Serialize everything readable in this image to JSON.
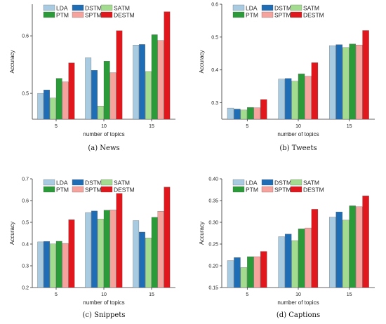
{
  "legend_colors": {
    "LDA": "#a8cbe2",
    "DSTM": "#1f6db5",
    "SATM": "#a4dc8f",
    "PTM": "#2b9a39",
    "SPTM": "#f6a29d",
    "DESTM": "#e0171c"
  },
  "chart_data": [
    {
      "type": "bar",
      "caption": "(a) News",
      "xlabel": "number of topics",
      "ylabel": "Accuracy",
      "categories": [
        "5",
        "10",
        "15"
      ],
      "ylim": [
        0.455,
        0.655
      ],
      "yticks": [
        0.5,
        0.6
      ],
      "ytick_labels": [
        "0.5",
        "0.6"
      ],
      "legend": "top-left",
      "series": [
        {
          "name": "LDA",
          "values": [
            0.5,
            0.562,
            0.584
          ]
        },
        {
          "name": "DSTM",
          "values": [
            0.506,
            0.54,
            0.585
          ]
        },
        {
          "name": "SATM",
          "values": [
            0.492,
            0.478,
            0.538
          ]
        },
        {
          "name": "PTM",
          "values": [
            0.526,
            0.556,
            0.602
          ]
        },
        {
          "name": "SPTM",
          "values": [
            0.52,
            0.536,
            0.592
          ]
        },
        {
          "name": "DESTM",
          "values": [
            0.553,
            0.609,
            0.642
          ]
        }
      ]
    },
    {
      "type": "bar",
      "caption": "(b) Tweets",
      "xlabel": "number of topics",
      "ylabel": "Accuracy",
      "categories": [
        "5",
        "10",
        "15"
      ],
      "ylim": [
        0.25,
        0.6
      ],
      "yticks": [
        0.3,
        0.4,
        0.5,
        0.6
      ],
      "ytick_labels": [
        "0.3",
        "0.4",
        "0.5",
        "0.6"
      ],
      "legend": "top-left",
      "series": [
        {
          "name": "LDA",
          "values": [
            0.284,
            0.372,
            0.474
          ]
        },
        {
          "name": "DSTM",
          "values": [
            0.281,
            0.374,
            0.477
          ]
        },
        {
          "name": "SATM",
          "values": [
            0.278,
            0.366,
            0.468
          ]
        },
        {
          "name": "PTM",
          "values": [
            0.286,
            0.388,
            0.479
          ]
        },
        {
          "name": "SPTM",
          "values": [
            0.285,
            0.381,
            0.476
          ]
        },
        {
          "name": "DESTM",
          "values": [
            0.31,
            0.422,
            0.52
          ]
        }
      ]
    },
    {
      "type": "bar",
      "caption": "(c) Snippets",
      "xlabel": "number of topics",
      "ylabel": "Accuracy",
      "categories": [
        "5",
        "10",
        "15"
      ],
      "ylim": [
        0.2,
        0.7
      ],
      "yticks": [
        0.2,
        0.3,
        0.4,
        0.5,
        0.6,
        0.7
      ],
      "ytick_labels": [
        "0.2",
        "0.3",
        "0.4",
        "0.5",
        "0.6",
        "0.7"
      ],
      "legend": "top-left",
      "series": [
        {
          "name": "LDA",
          "values": [
            0.41,
            0.545,
            0.508
          ]
        },
        {
          "name": "DSTM",
          "values": [
            0.412,
            0.552,
            0.455
          ]
        },
        {
          "name": "SATM",
          "values": [
            0.401,
            0.515,
            0.428
          ]
        },
        {
          "name": "PTM",
          "values": [
            0.413,
            0.556,
            0.523
          ]
        },
        {
          "name": "SPTM",
          "values": [
            0.403,
            0.557,
            0.551
          ]
        },
        {
          "name": "DESTM",
          "values": [
            0.512,
            0.633,
            0.662
          ]
        }
      ]
    },
    {
      "type": "bar",
      "caption": "(d) Captions",
      "xlabel": "number of topics",
      "ylabel": "Accuracy",
      "categories": [
        "5",
        "10",
        "15"
      ],
      "ylim": [
        0.15,
        0.4
      ],
      "yticks": [
        0.15,
        0.2,
        0.25,
        0.3,
        0.35,
        0.4
      ],
      "ytick_labels": [
        "0.15",
        "0.20",
        "0.25",
        "0.30",
        "0.35",
        "0.40"
      ],
      "legend": "top-left",
      "series": [
        {
          "name": "LDA",
          "values": [
            0.212,
            0.267,
            0.312
          ]
        },
        {
          "name": "DSTM",
          "values": [
            0.219,
            0.273,
            0.324
          ]
        },
        {
          "name": "SATM",
          "values": [
            0.196,
            0.258,
            0.305
          ]
        },
        {
          "name": "PTM",
          "values": [
            0.221,
            0.285,
            0.338
          ]
        },
        {
          "name": "SPTM",
          "values": [
            0.221,
            0.287,
            0.336
          ]
        },
        {
          "name": "DESTM",
          "values": [
            0.233,
            0.33,
            0.361
          ]
        }
      ]
    }
  ]
}
